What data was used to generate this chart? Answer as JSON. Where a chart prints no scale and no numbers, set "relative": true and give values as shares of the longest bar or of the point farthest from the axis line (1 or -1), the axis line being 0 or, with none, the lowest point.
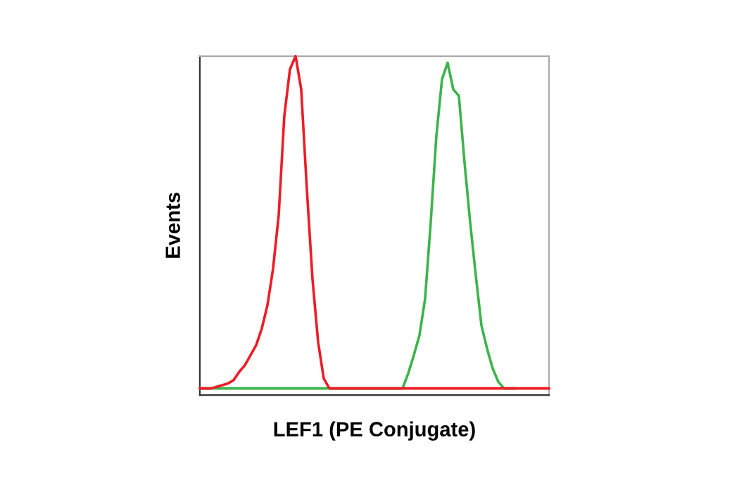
{
  "chart_data": {
    "type": "line",
    "relative": true,
    "xlabel": "LEF1 (PE Conjugate)",
    "ylabel": "Events",
    "grid": false,
    "marker": "none",
    "line_style": "solid",
    "categories": [
      null,
      null,
      null,
      null,
      null,
      null,
      null,
      null,
      null,
      null,
      null,
      null,
      null,
      null,
      null,
      null,
      null,
      null,
      null,
      null,
      null,
      null,
      null,
      null,
      null,
      null,
      null,
      null,
      null,
      null,
      null,
      null,
      null,
      null,
      null,
      null,
      null,
      null,
      null,
      null,
      null,
      null,
      null,
      null,
      null,
      null,
      null,
      null,
      null,
      null,
      null,
      null,
      null,
      null,
      null,
      null,
      null,
      null,
      null,
      null,
      null,
      null,
      null
    ],
    "series": [
      {
        "color": "#3cb44b",
        "values": [
          0,
          0,
          0,
          0,
          0,
          0,
          0,
          0,
          0,
          0,
          0,
          0,
          0,
          0,
          0,
          0,
          0,
          0,
          0,
          0,
          0,
          0,
          0,
          0,
          0,
          0,
          0,
          0,
          0,
          0,
          0,
          0,
          0,
          0,
          0,
          0,
          0,
          0.045,
          0.1,
          0.16,
          0.27,
          0.5,
          0.76,
          0.93,
          0.98,
          0.9,
          0.88,
          0.68,
          0.5,
          0.34,
          0.19,
          0.12,
          0.06,
          0.02,
          0,
          0,
          0,
          null,
          null,
          null,
          null,
          null,
          null
        ]
      },
      {
        "color": "#ee1c25",
        "values": [
          0,
          0,
          0,
          0.005,
          0.01,
          0.015,
          0.025,
          0.05,
          0.07,
          0.1,
          0.13,
          0.18,
          0.25,
          0.36,
          0.52,
          0.82,
          0.96,
          1.0,
          0.9,
          0.6,
          0.33,
          0.14,
          0.03,
          0,
          0,
          0,
          0,
          0,
          0,
          0,
          0,
          0,
          0,
          0,
          0,
          0,
          0,
          0,
          0,
          0,
          0,
          0,
          0,
          0,
          0,
          0,
          0,
          0,
          0,
          0,
          0,
          0,
          0,
          0,
          0,
          0,
          0,
          0,
          0,
          0,
          0,
          0,
          0
        ]
      }
    ]
  }
}
